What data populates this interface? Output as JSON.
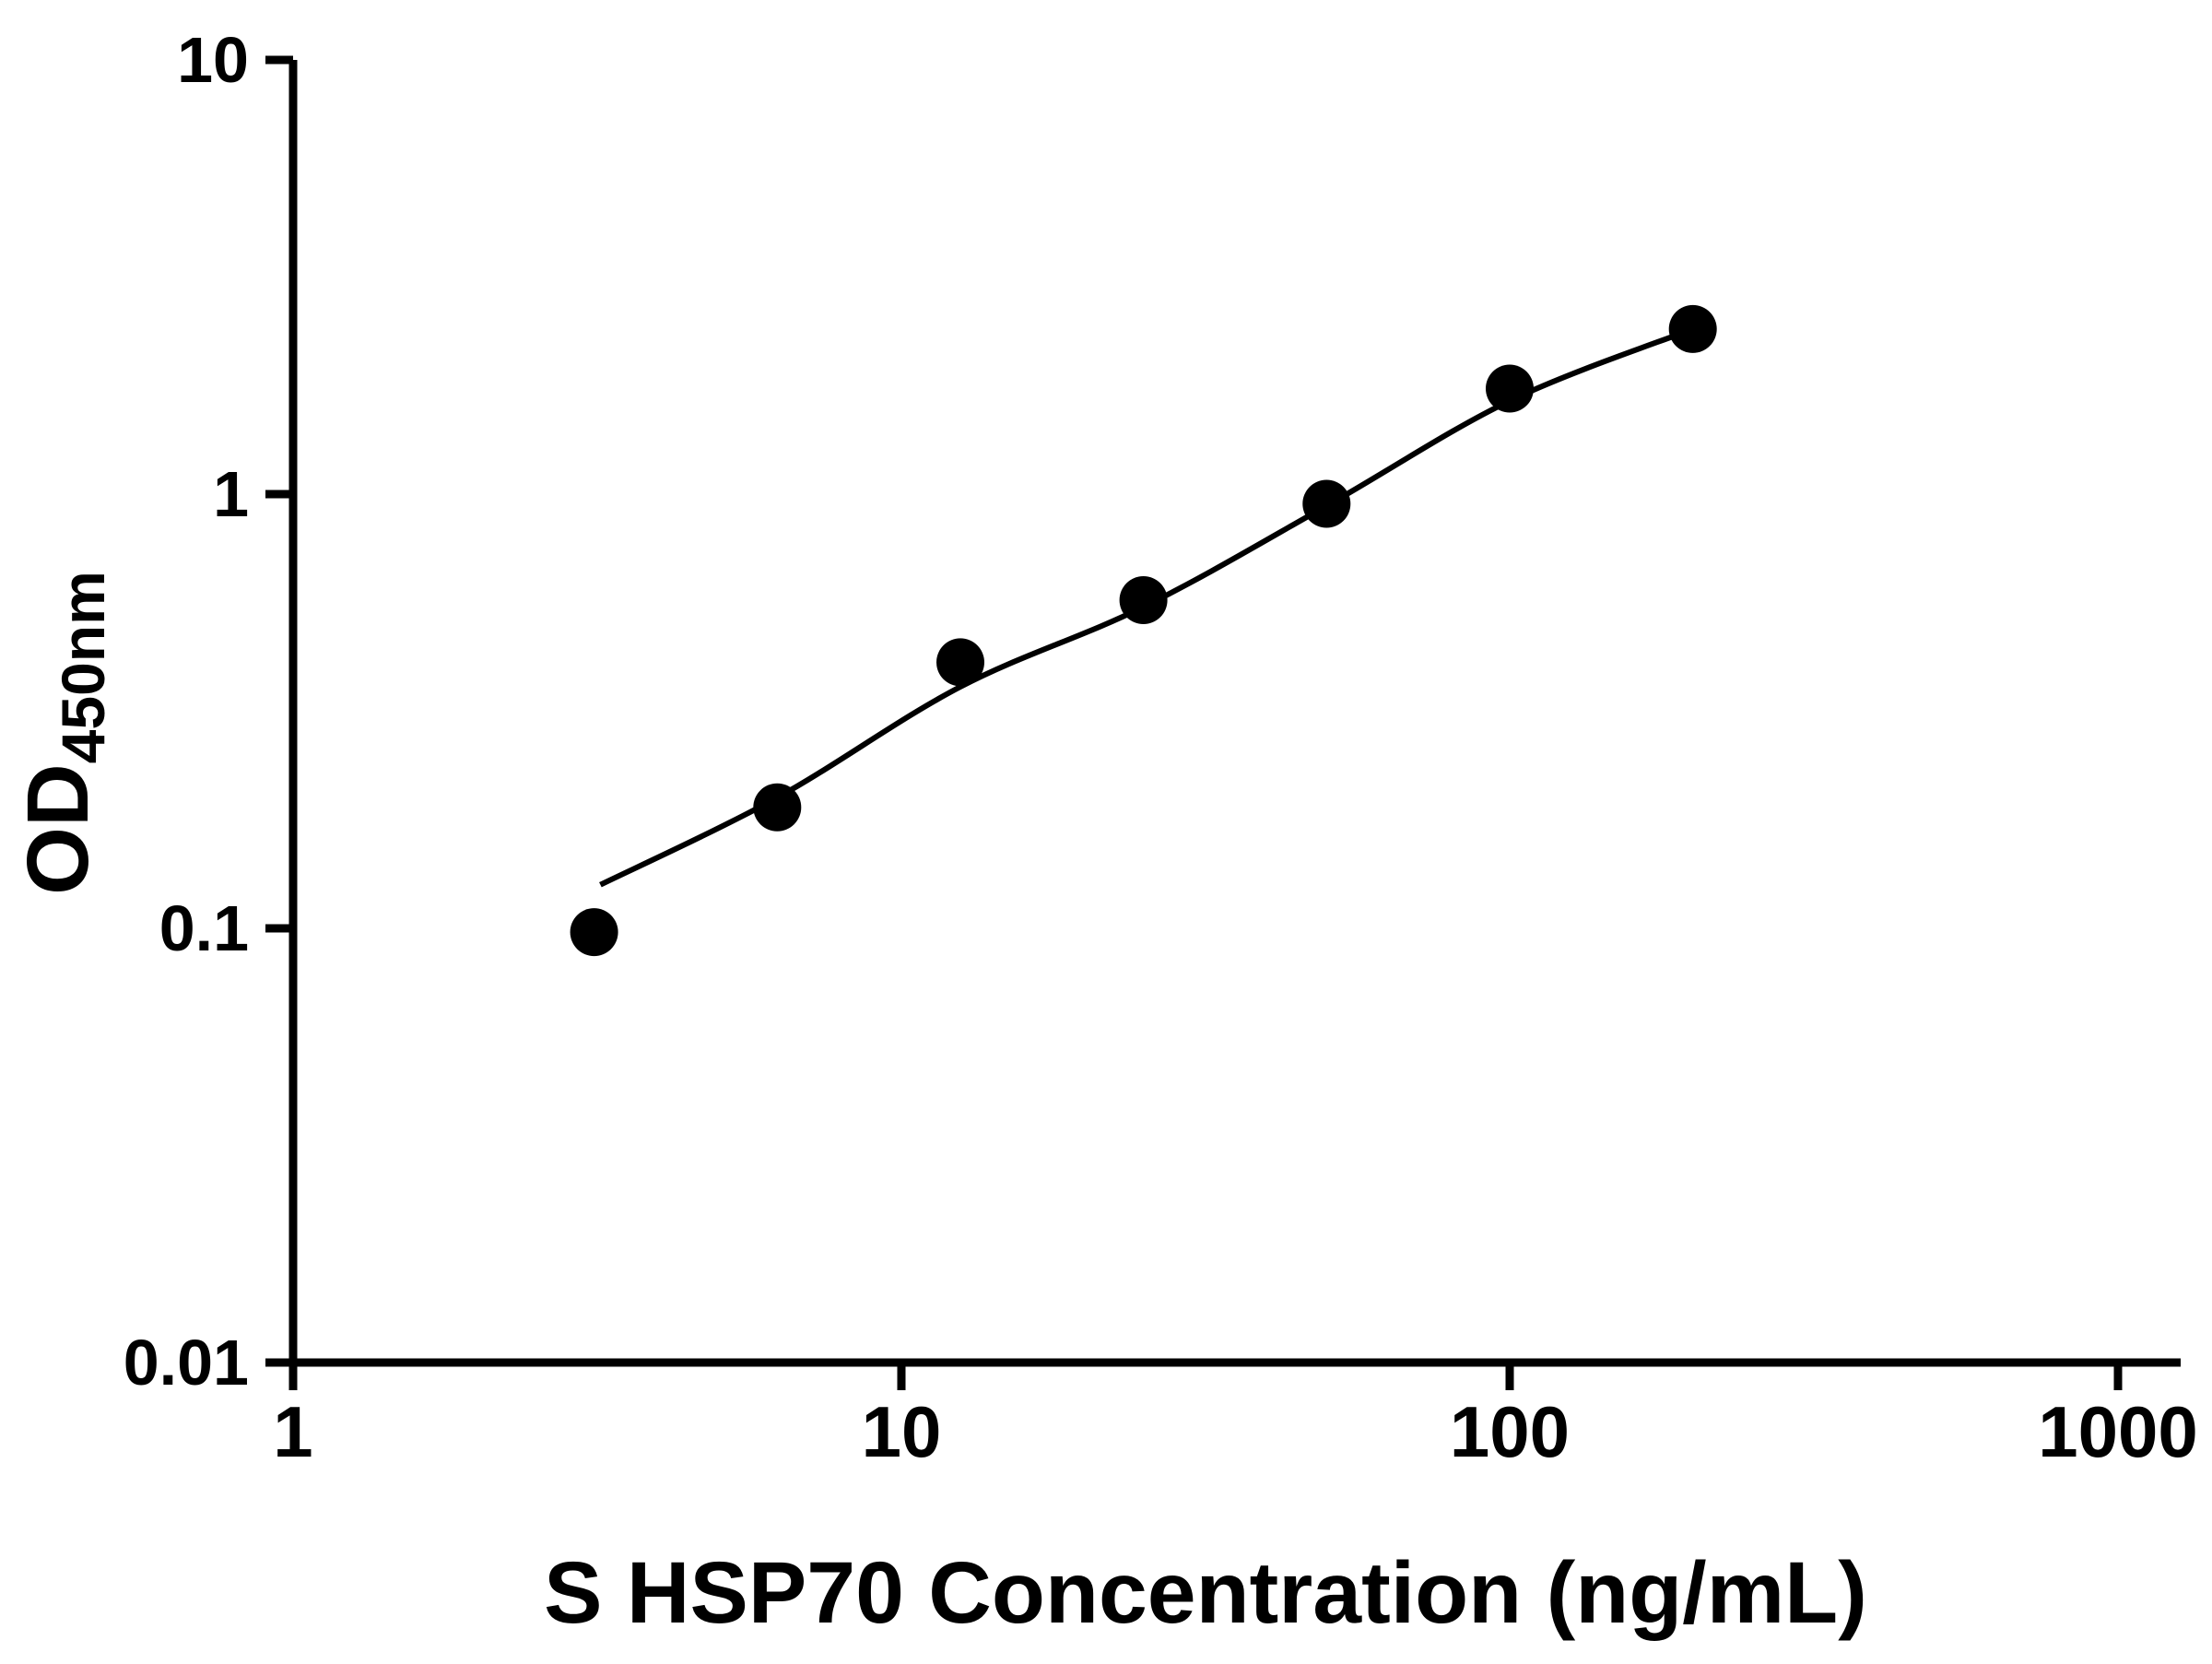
{
  "chart_data": {
    "type": "scatter",
    "title": "",
    "xlabel": "S HSP70 Concentration (ng/mL)",
    "ylabel_main": "OD",
    "ylabel_sub": "450nm",
    "x_scale": "log",
    "y_scale": "log",
    "xlim": [
      1,
      1000
    ],
    "ylim": [
      0.01,
      10
    ],
    "x_ticks": [
      1,
      10,
      100,
      1000
    ],
    "x_tick_labels": [
      "1",
      "10",
      "100",
      "1000"
    ],
    "y_ticks": [
      0.01,
      0.1,
      1,
      10
    ],
    "y_tick_labels": [
      "0.01",
      "0.1",
      "1",
      "10"
    ],
    "grid": false,
    "legend": false,
    "background_color": "#ffffff",
    "axis_color": "#000000",
    "marker_color": "#000000",
    "line_color": "#000000",
    "series": [
      {
        "name": "standard-data-points",
        "type": "scatter",
        "marker": "filled-circle",
        "x": [
          3.125,
          6.25,
          12.5,
          25,
          50,
          100,
          200
        ],
        "y": [
          0.098,
          0.19,
          0.41,
          0.57,
          0.95,
          1.75,
          2.4
        ]
      },
      {
        "name": "fitted-standard-curve",
        "type": "line",
        "x": [
          3.2,
          6.25,
          12.5,
          25,
          50,
          100,
          200
        ],
        "y": [
          0.126,
          0.2,
          0.36,
          0.55,
          0.94,
          1.64,
          2.4
        ]
      }
    ]
  }
}
